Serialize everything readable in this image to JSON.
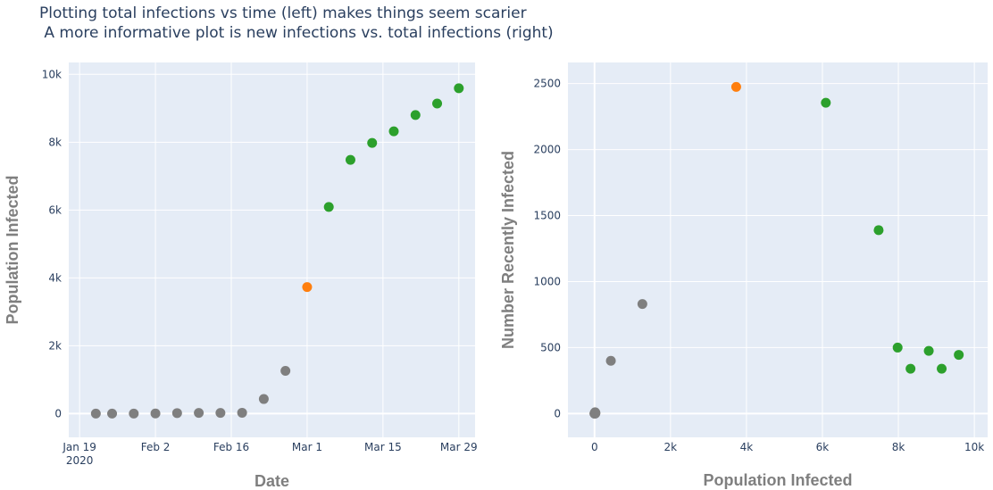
{
  "title": {
    "line1": "Plotting total infections vs time (left) makes things seem scarier",
    "line2": " A more informative plot is new infections vs. total infections (right)"
  },
  "colors": {
    "plot_bg": "#e5ecf6",
    "grey": "#7f7f7f",
    "orange": "#ff7f0e",
    "green": "#2ca02c"
  },
  "chart_data": [
    {
      "type": "scatter",
      "xlabel": "Date",
      "ylabel": "Population Infected",
      "x_ticks": [
        {
          "value": "2020-01-19",
          "label": "Jan 19",
          "sublabel": "2020"
        },
        {
          "value": "2020-02-02",
          "label": "Feb 2"
        },
        {
          "value": "2020-02-16",
          "label": "Feb 16"
        },
        {
          "value": "2020-03-01",
          "label": "Mar 1"
        },
        {
          "value": "2020-03-15",
          "label": "Mar 15"
        },
        {
          "value": "2020-03-29",
          "label": "Mar 29"
        }
      ],
      "xlim": [
        "2020-01-17",
        "2020-04-01"
      ],
      "y_ticks": [
        {
          "value": 0,
          "label": "0"
        },
        {
          "value": 2000,
          "label": "2k"
        },
        {
          "value": 4000,
          "label": "4k"
        },
        {
          "value": 6000,
          "label": "6k"
        },
        {
          "value": 8000,
          "label": "8k"
        },
        {
          "value": 10000,
          "label": "10k"
        }
      ],
      "ylim": [
        -700,
        10350
      ],
      "grid": true,
      "points": [
        {
          "x": "2020-01-22",
          "y": 0,
          "color": "grey"
        },
        {
          "x": "2020-01-25",
          "y": 0,
          "color": "grey"
        },
        {
          "x": "2020-01-29",
          "y": 0,
          "color": "grey"
        },
        {
          "x": "2020-02-02",
          "y": 5,
          "color": "grey"
        },
        {
          "x": "2020-02-06",
          "y": 15,
          "color": "grey"
        },
        {
          "x": "2020-02-10",
          "y": 20,
          "color": "grey"
        },
        {
          "x": "2020-02-14",
          "y": 20,
          "color": "grey"
        },
        {
          "x": "2020-02-18",
          "y": 25,
          "color": "grey"
        },
        {
          "x": "2020-02-22",
          "y": 430,
          "color": "grey"
        },
        {
          "x": "2020-02-26",
          "y": 1260,
          "color": "grey"
        },
        {
          "x": "2020-03-01",
          "y": 3730,
          "color": "orange"
        },
        {
          "x": "2020-03-05",
          "y": 6090,
          "color": "green"
        },
        {
          "x": "2020-03-09",
          "y": 7480,
          "color": "green"
        },
        {
          "x": "2020-03-13",
          "y": 7980,
          "color": "green"
        },
        {
          "x": "2020-03-17",
          "y": 8320,
          "color": "green"
        },
        {
          "x": "2020-03-21",
          "y": 8800,
          "color": "green"
        },
        {
          "x": "2020-03-25",
          "y": 9140,
          "color": "green"
        },
        {
          "x": "2020-03-29",
          "y": 9590,
          "color": "green"
        }
      ]
    },
    {
      "type": "scatter",
      "xlabel": "Population Infected",
      "ylabel": "Number Recently Infected",
      "x_ticks": [
        {
          "value": 0,
          "label": "0"
        },
        {
          "value": 2000,
          "label": "2k"
        },
        {
          "value": 4000,
          "label": "4k"
        },
        {
          "value": 6000,
          "label": "6k"
        },
        {
          "value": 8000,
          "label": "8k"
        },
        {
          "value": 10000,
          "label": "10k"
        }
      ],
      "xlim": [
        -700,
        10350
      ],
      "y_ticks": [
        {
          "value": 0,
          "label": "0"
        },
        {
          "value": 500,
          "label": "500"
        },
        {
          "value": 1000,
          "label": "1000"
        },
        {
          "value": 1500,
          "label": "1500"
        },
        {
          "value": 2000,
          "label": "2000"
        },
        {
          "value": 2500,
          "label": "2500"
        }
      ],
      "ylim": [
        -180,
        2660
      ],
      "grid": true,
      "points": [
        {
          "x": 0,
          "y": 0,
          "color": "grey"
        },
        {
          "x": 0,
          "y": 0,
          "color": "grey"
        },
        {
          "x": 0,
          "y": 0,
          "color": "grey"
        },
        {
          "x": 5,
          "y": 5,
          "color": "grey"
        },
        {
          "x": 15,
          "y": 10,
          "color": "grey"
        },
        {
          "x": 20,
          "y": 5,
          "color": "grey"
        },
        {
          "x": 20,
          "y": 0,
          "color": "grey"
        },
        {
          "x": 25,
          "y": 5,
          "color": "grey"
        },
        {
          "x": 430,
          "y": 400,
          "color": "grey"
        },
        {
          "x": 1260,
          "y": 830,
          "color": "grey"
        },
        {
          "x": 3730,
          "y": 2475,
          "color": "orange"
        },
        {
          "x": 6090,
          "y": 2355,
          "color": "green"
        },
        {
          "x": 7480,
          "y": 1390,
          "color": "green"
        },
        {
          "x": 7980,
          "y": 500,
          "color": "green"
        },
        {
          "x": 8320,
          "y": 340,
          "color": "green"
        },
        {
          "x": 8800,
          "y": 475,
          "color": "green"
        },
        {
          "x": 9140,
          "y": 340,
          "color": "green"
        },
        {
          "x": 9590,
          "y": 445,
          "color": "green"
        }
      ]
    }
  ]
}
